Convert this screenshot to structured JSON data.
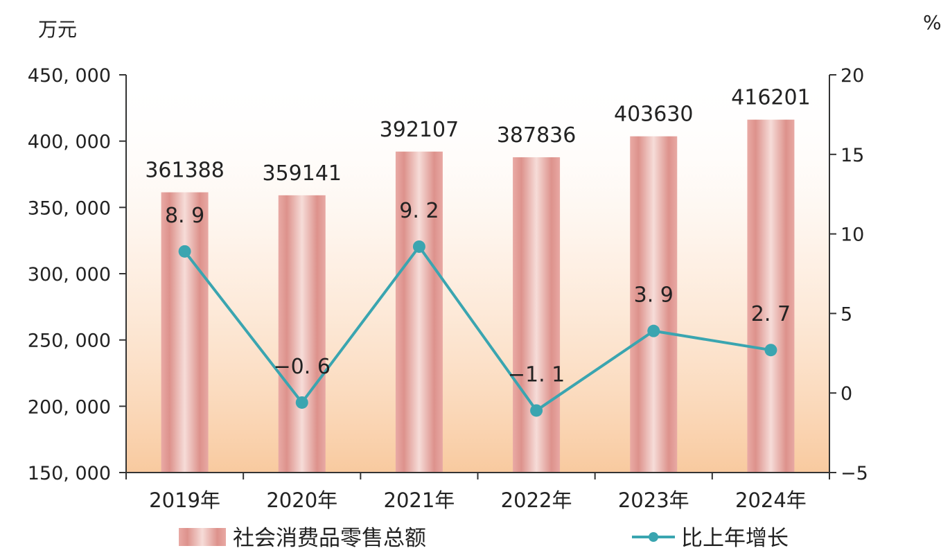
{
  "chart_data": {
    "type": "bar",
    "categories": [
      "2019年",
      "2020年",
      "2021年",
      "2022年",
      "2023年",
      "2024年"
    ],
    "series": [
      {
        "name": "社会消费品零售总额",
        "type": "bar",
        "axis": "left",
        "values": [
          361388,
          359141,
          392107,
          387836,
          403630,
          416201
        ],
        "labels": [
          "361388",
          "359141",
          "392107",
          "387836",
          "403630",
          "416201"
        ]
      },
      {
        "name": "比上年增长",
        "type": "line",
        "axis": "right",
        "values": [
          8.9,
          -0.6,
          9.2,
          -1.1,
          3.9,
          2.7
        ],
        "labels": [
          "8. 9",
          "−0. 6",
          "9. 2",
          "−1. 1",
          "3. 9",
          "2. 7"
        ]
      }
    ],
    "y_left": {
      "unit": "万元",
      "range": [
        150000,
        450000
      ],
      "ticks": [
        150000,
        200000,
        250000,
        300000,
        350000,
        400000,
        450000
      ],
      "tick_labels": [
        "150, 000",
        "200, 000",
        "250, 000",
        "300, 000",
        "350, 000",
        "400, 000",
        "450, 000"
      ]
    },
    "y_right": {
      "unit": "%",
      "range": [
        -5,
        20
      ],
      "ticks": [
        -5,
        0,
        5,
        10,
        15,
        20
      ],
      "tick_labels": [
        "−5",
        "0",
        "5",
        "10",
        "15",
        "20"
      ]
    },
    "grid": false,
    "legend_position": "bottom",
    "colors": {
      "bar": "#e3a29e",
      "bar_dark": "#cf8580",
      "bar_light": "#f6dcd8",
      "line": "#3aa5b0",
      "axis": "#333333",
      "bg_top": "#ffffff",
      "bg_bottom": "#f8c79a"
    }
  }
}
